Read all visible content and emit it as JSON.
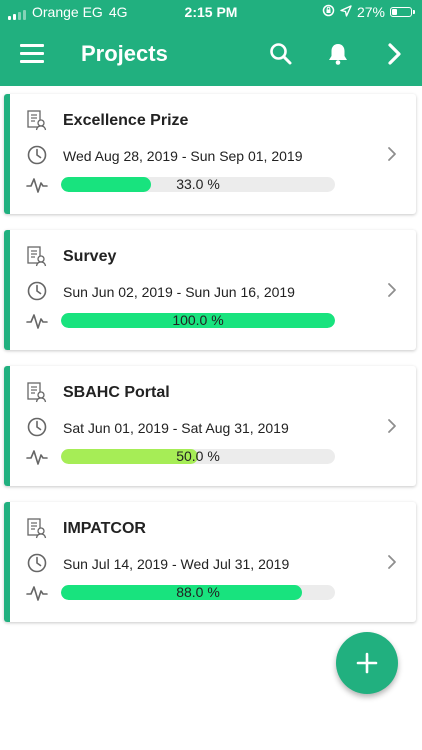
{
  "status_bar": {
    "carrier": "Orange EG",
    "network": "4G",
    "time": "2:15 PM",
    "battery_percent": "27%",
    "signal_bars": 4,
    "signal_strength": 2,
    "battery_level": 0.27
  },
  "app_bar": {
    "title": "Projects",
    "icons": [
      "menu-icon",
      "search-icon",
      "bell-icon",
      "chevron-right-icon"
    ]
  },
  "colors": {
    "brand": "#21b07f",
    "progress_full": "#18e37e",
    "progress_partial": "#a6ed56",
    "track": "#ececec"
  },
  "projects": [
    {
      "name": "Excellence Prize",
      "dates": "Wed Aug 28, 2019 - Sun Sep 01, 2019",
      "progress": 33.0,
      "progress_label": "33.0 %",
      "bar_color": "#18e37e"
    },
    {
      "name": "Survey",
      "dates": "Sun Jun 02, 2019 - Sun Jun 16, 2019",
      "progress": 100.0,
      "progress_label": "100.0 %",
      "bar_color": "#18e37e"
    },
    {
      "name": "SBAHC Portal",
      "dates": "Sat Jun 01, 2019 - Sat Aug 31, 2019",
      "progress": 50.0,
      "progress_label": "50.0 %",
      "bar_color": "#a6ed56"
    },
    {
      "name": "IMPATCOR",
      "dates": "Sun Jul 14, 2019 - Wed Jul 31, 2019",
      "progress": 88.0,
      "progress_label": "88.0 %",
      "bar_color": "#18e37e"
    }
  ],
  "fab": {
    "icon": "plus-icon"
  }
}
